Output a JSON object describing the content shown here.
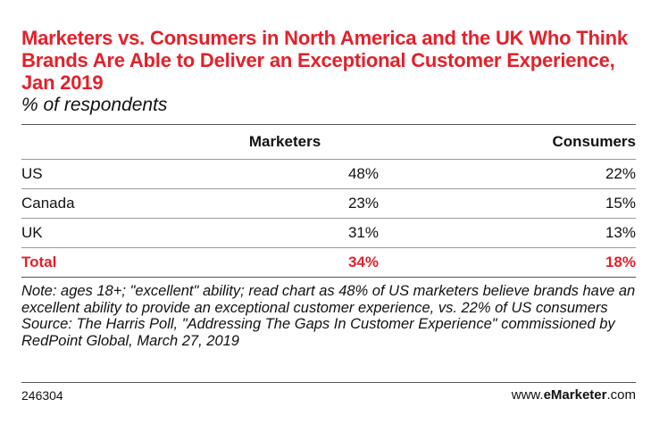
{
  "chart_data": {
    "type": "table",
    "title": "Marketers vs. Consumers in North America and the UK Who Think Brands Are Able to Deliver an Exceptional Customer Experience, Jan 2019",
    "subtitle": "% of respondents",
    "columns": [
      "",
      "Marketers",
      "Consumers"
    ],
    "rows": [
      {
        "label": "US",
        "marketers": "48%",
        "consumers": "22%"
      },
      {
        "label": "Canada",
        "marketers": "23%",
        "consumers": "15%"
      },
      {
        "label": "UK",
        "marketers": "31%",
        "consumers": "13%"
      }
    ],
    "total": {
      "label": "Total",
      "marketers": "34%",
      "consumers": "18%"
    },
    "note": "Note: ages 18+; \"excellent\" ability; read chart as 48% of US marketers believe brands have an excellent ability to provide an exceptional customer experience, vs. 22% of US consumers",
    "source": "Source: The Harris Poll, \"Addressing The Gaps In Customer Experience\" commissioned by RedPoint Global, March 27, 2019",
    "chart_id": "246304",
    "brand": {
      "prefix": "www.",
      "name": "eMarketer",
      "suffix": ".com"
    },
    "colors": {
      "accent": "#e4202a",
      "text": "#111111"
    }
  }
}
